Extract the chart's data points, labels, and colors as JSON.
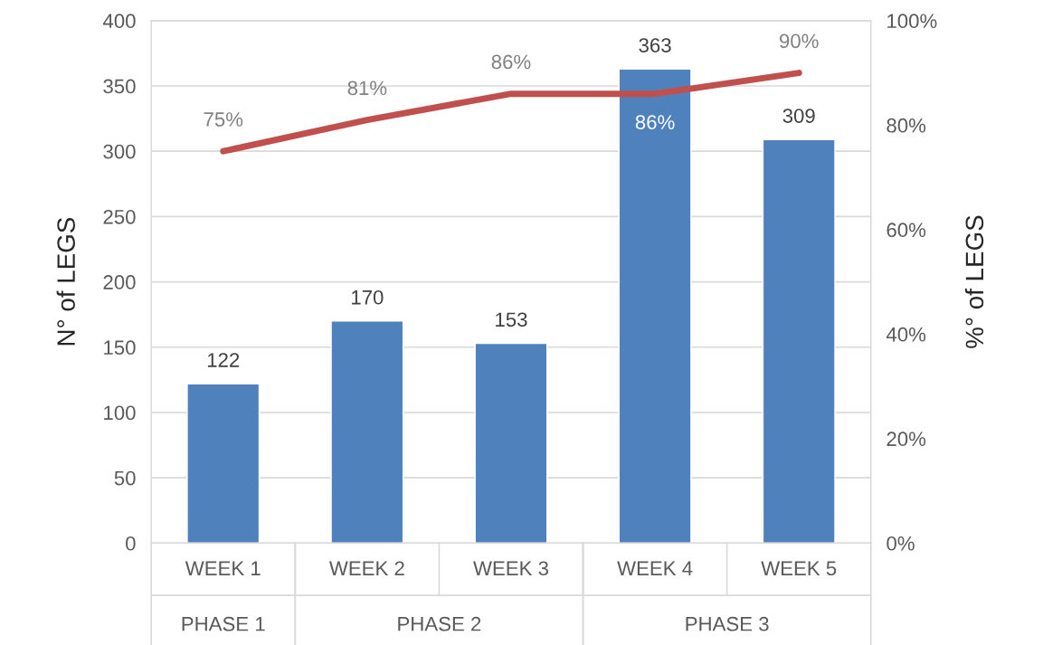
{
  "chart_data": {
    "type": "bar",
    "categories": [
      "WEEK 1",
      "WEEK 2",
      "WEEK 3",
      "WEEK 4",
      "WEEK 5"
    ],
    "ylabel": "N° of LEGS",
    "y2label": "%° of LEGS",
    "ylim": [
      0,
      400
    ],
    "yticks": [
      0,
      50,
      100,
      150,
      200,
      250,
      300,
      350,
      400
    ],
    "y2lim": [
      0,
      100
    ],
    "y2ticks": [
      {
        "value": 0,
        "label": "0%"
      },
      {
        "value": 20,
        "label": "20%"
      },
      {
        "value": 40,
        "label": "40%"
      },
      {
        "value": 60,
        "label": "60%"
      },
      {
        "value": 80,
        "label": "80%"
      },
      {
        "value": 100,
        "label": "100%"
      }
    ],
    "grid": "y",
    "legend": false,
    "series": [
      {
        "color": "#4f81bd",
        "values": [
          122,
          170,
          153,
          363,
          309
        ],
        "value_labels": [
          "122",
          "170",
          "153",
          "363",
          "309"
        ]
      },
      {
        "type": "line",
        "axis": "y2",
        "color": "#c0504d",
        "marker": "none",
        "values": [
          75,
          81,
          86,
          86,
          90
        ],
        "value_labels": [
          "75%",
          "81%",
          "86%",
          "86%",
          "90%"
        ]
      }
    ],
    "annotations": [
      "PHASE 1",
      "PHASE 2",
      "PHASE 3"
    ]
  }
}
